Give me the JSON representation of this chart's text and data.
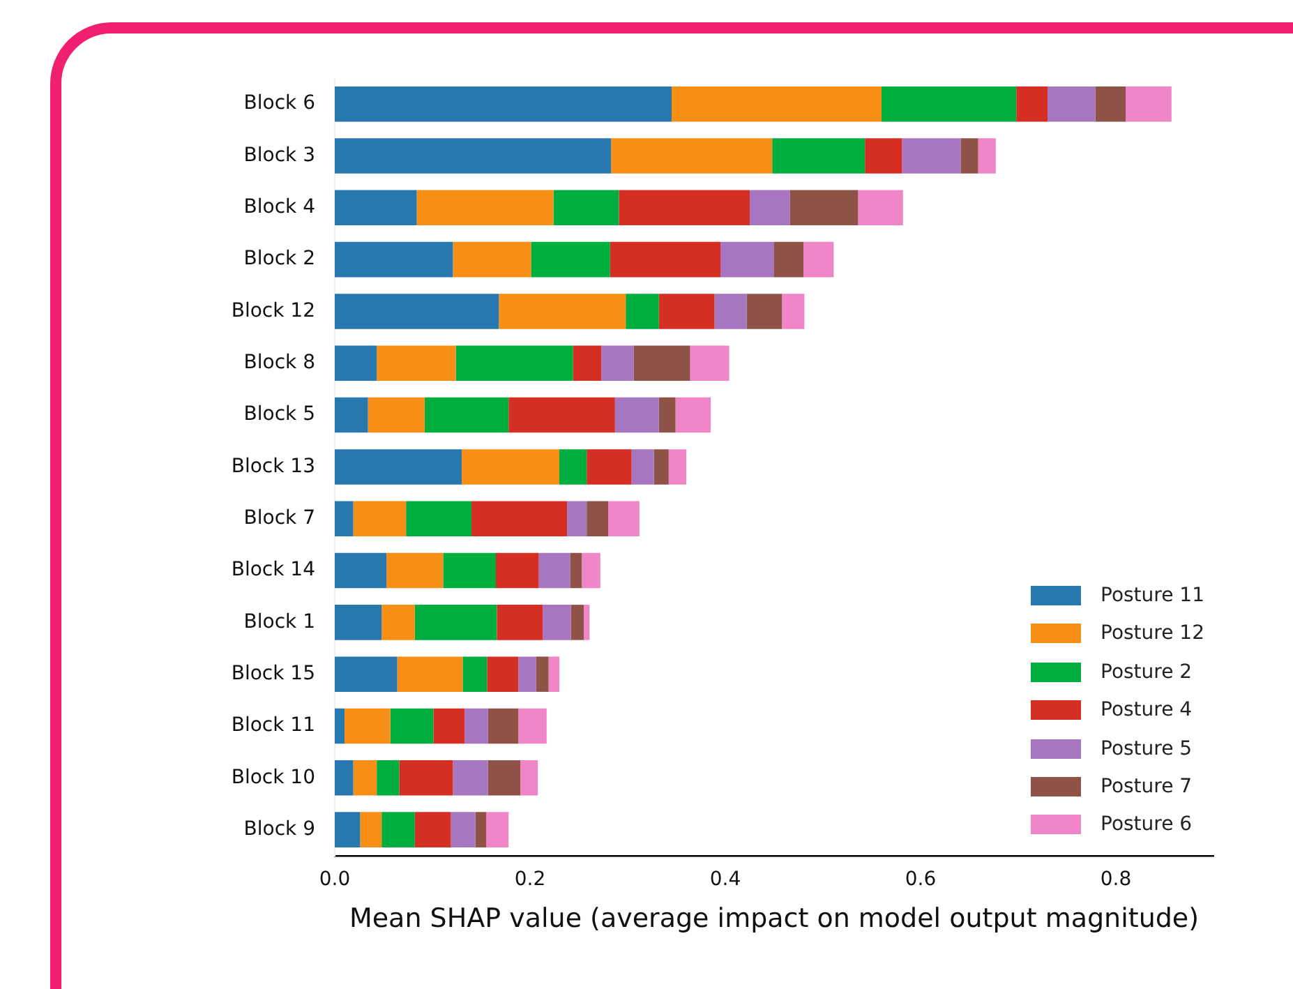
{
  "chart_data": {
    "type": "bar",
    "orientation": "horizontal",
    "stacked": true,
    "xlabel": "Mean SHAP value (average impact on model output magnitude)",
    "categories": [
      "Block 6",
      "Block 3",
      "Block 4",
      "Block 2",
      "Block 12",
      "Block 8",
      "Block 5",
      "Block 13",
      "Block 7",
      "Block 14",
      "Block 1",
      "Block 15",
      "Block 11",
      "Block 10",
      "Block 9"
    ],
    "series": [
      {
        "name": "Posture 11",
        "color": "#2878b0",
        "values": [
          0.345,
          0.283,
          0.084,
          0.121,
          0.168,
          0.043,
          0.034,
          0.13,
          0.019,
          0.053,
          0.048,
          0.064,
          0.01,
          0.019,
          0.026
        ]
      },
      {
        "name": "Posture 12",
        "color": "#f78f17",
        "values": [
          0.215,
          0.165,
          0.14,
          0.08,
          0.13,
          0.081,
          0.058,
          0.1,
          0.054,
          0.058,
          0.034,
          0.067,
          0.047,
          0.024,
          0.022
        ]
      },
      {
        "name": "Posture 2",
        "color": "#00ae40",
        "values": [
          0.138,
          0.095,
          0.067,
          0.081,
          0.034,
          0.12,
          0.086,
          0.028,
          0.067,
          0.054,
          0.084,
          0.025,
          0.044,
          0.023,
          0.034
        ]
      },
      {
        "name": "Posture 4",
        "color": "#d52e22",
        "values": [
          0.032,
          0.038,
          0.134,
          0.113,
          0.057,
          0.029,
          0.109,
          0.046,
          0.098,
          0.044,
          0.047,
          0.032,
          0.032,
          0.055,
          0.037
        ]
      },
      {
        "name": "Posture 5",
        "color": "#a776c0",
        "values": [
          0.049,
          0.06,
          0.041,
          0.055,
          0.033,
          0.033,
          0.045,
          0.023,
          0.02,
          0.032,
          0.029,
          0.018,
          0.024,
          0.036,
          0.025
        ]
      },
      {
        "name": "Posture 7",
        "color": "#8f5247",
        "values": [
          0.031,
          0.018,
          0.07,
          0.03,
          0.036,
          0.058,
          0.017,
          0.015,
          0.022,
          0.012,
          0.013,
          0.013,
          0.031,
          0.033,
          0.011
        ]
      },
      {
        "name": "Posture 6",
        "color": "#f085c8",
        "values": [
          0.047,
          0.018,
          0.046,
          0.031,
          0.023,
          0.04,
          0.036,
          0.018,
          0.032,
          0.019,
          0.006,
          0.011,
          0.029,
          0.018,
          0.023
        ]
      }
    ],
    "xlim": [
      0,
      0.9
    ],
    "xticks": [
      {
        "value": 0,
        "label": "0.0"
      },
      {
        "value": 0.2,
        "label": "0.2"
      },
      {
        "value": 0.4,
        "label": "0.4"
      },
      {
        "value": 0.6,
        "label": "0.6"
      },
      {
        "value": 0.8,
        "label": "0.8"
      }
    ],
    "legend": "bottom right",
    "grid": false
  }
}
